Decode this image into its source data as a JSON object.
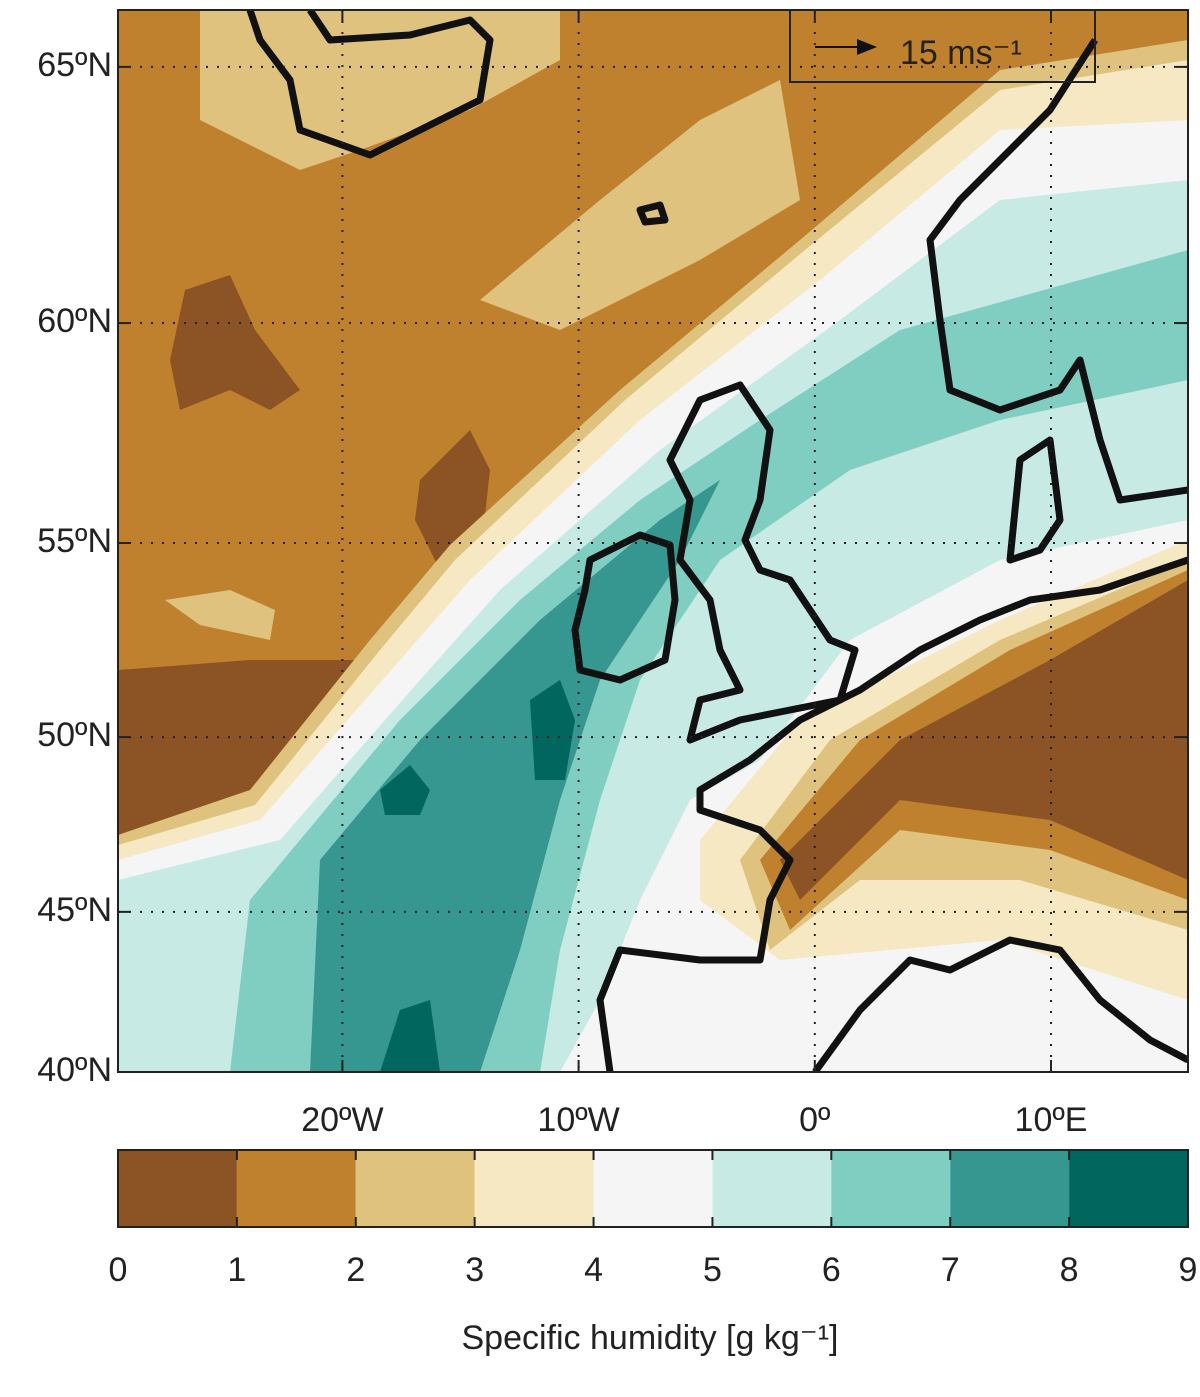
{
  "map": {
    "lon_range": [
      -29.5,
      15.8
    ],
    "lat_range": [
      40,
      66
    ],
    "lon_ticks": [
      {
        "value": -20,
        "label": "20ºW"
      },
      {
        "value": -10,
        "label": "10ºW"
      },
      {
        "value": 0,
        "label": "0º"
      },
      {
        "value": 10,
        "label": "10ºE"
      }
    ],
    "lat_ticks": [
      {
        "value": 40,
        "label": "40ºN"
      },
      {
        "value": 45,
        "label": "45ºN"
      },
      {
        "value": 50,
        "label": "50ºN"
      },
      {
        "value": 55,
        "label": "55ºN"
      },
      {
        "value": 60,
        "label": "60ºN"
      },
      {
        "value": 65,
        "label": "65ºN"
      }
    ],
    "reference_vector": {
      "value": 15,
      "label": "15 ms⁻¹"
    }
  },
  "colorbar": {
    "label": "Specific humidity [g kg⁻¹]",
    "lim": [
      0,
      9
    ],
    "ticks": [
      0,
      1,
      2,
      3,
      4,
      5,
      6,
      7,
      8,
      9
    ],
    "colors": [
      "#8c5325",
      "#bf812d",
      "#dfc27d",
      "#f6e8c3",
      "#f5f5f5",
      "#c7eae5",
      "#80cdc1",
      "#35978f",
      "#01665e"
    ]
  }
}
